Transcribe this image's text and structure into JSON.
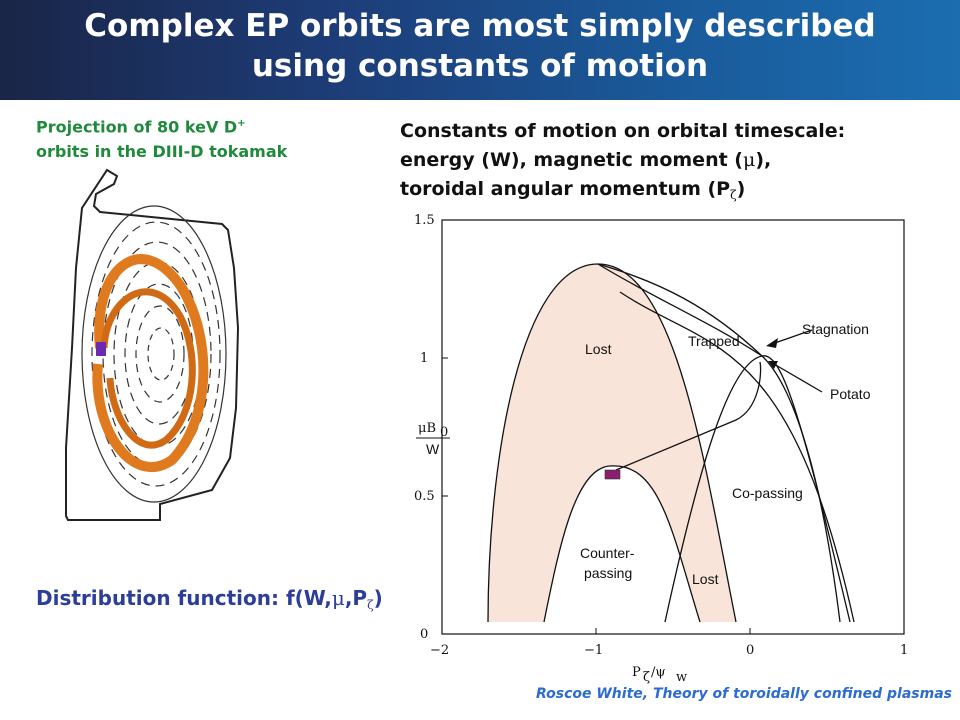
{
  "slide": {
    "title_line1": "Complex EP orbits are most simply described",
    "title_line2": "using constants of motion",
    "projection_line1_pre": "Projection of 80 keV D",
    "projection_line1_sup": "+",
    "projection_line2": "orbits in the DIII-D tokamak",
    "constants_line1": "Constants of motion on orbital timescale:",
    "constants_line2_pre": "energy (W), magnetic moment (",
    "constants_mu": "μ",
    "constants_line2_post": "),",
    "constants_line3_pre": "toroidal angular momentum (P",
    "constants_zeta": "ζ",
    "constants_line3_post": ")",
    "distribution_pre": "Distribution function: f(W,",
    "distribution_mu": "μ",
    "distribution_mid": ",P",
    "distribution_zeta": "ζ",
    "distribution_post": ")",
    "citation": "Roscoe White, Theory of toroidally confined plasmas"
  },
  "diagram": {
    "regions": {
      "lost_left": "Lost",
      "lost_right": "Lost",
      "trapped": "Trapped",
      "copassing": "Co-passing",
      "counter_line1": "Counter-",
      "counter_line2": "passing",
      "stagnation": "Stagnation",
      "potato": "Potato"
    },
    "axes": {
      "x_label_main": "P",
      "x_label_zeta": "ζ",
      "x_label_slash": "/ψ",
      "x_label_w": "w",
      "y_label_num_mu": "μB",
      "y_label_num_0": "0",
      "y_label_den": "W",
      "x_ticks": [
        "−2",
        "−1",
        "0",
        "1"
      ],
      "y_ticks": [
        "0",
        "0.5",
        "1",
        "1.5"
      ],
      "x_range": [
        -2,
        1
      ],
      "y_range": [
        0,
        1.5
      ]
    },
    "colors": {
      "lost_fill": "#f8e4d8",
      "marker": "#8b1e6e",
      "orbit": "#e07a1e"
    }
  }
}
